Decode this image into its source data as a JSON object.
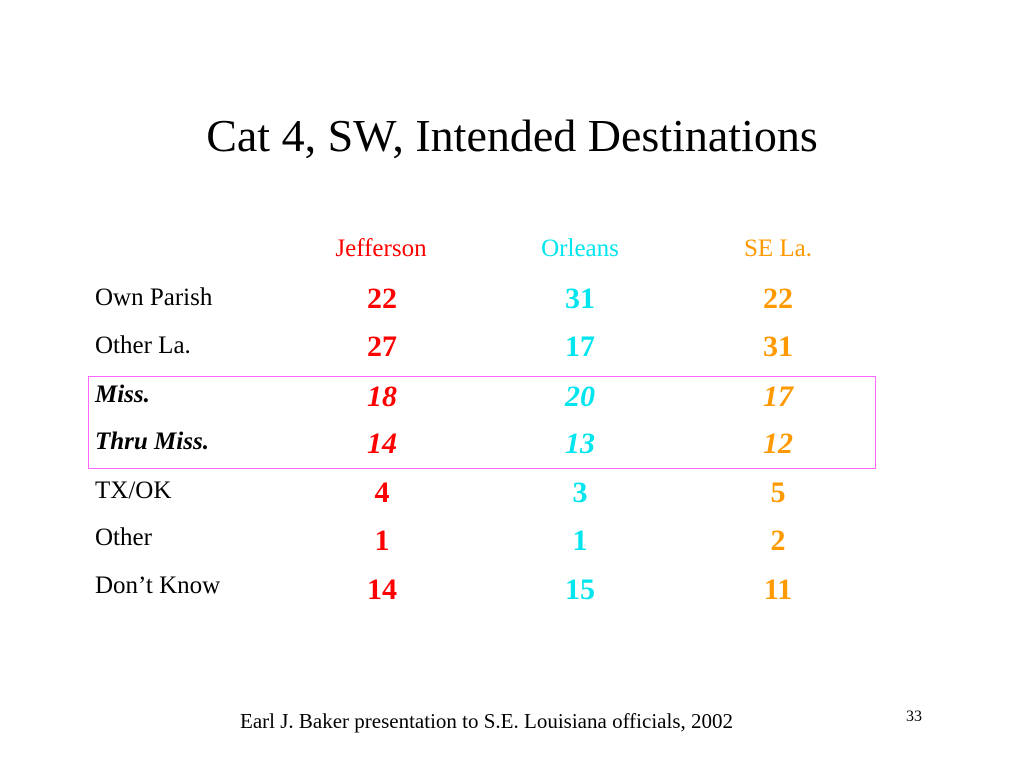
{
  "slide": {
    "title": "Cat 4, SW, Intended Destinations",
    "footer": "Earl J. Baker presentation to S.E. Louisiana officials, 2002",
    "page_number": "33"
  },
  "colors": {
    "jefferson": "#ff0000",
    "orleans": "#00e5ee",
    "se_la": "#ff9900",
    "highlight_border": "#ff66ff"
  },
  "table": {
    "columns": [
      "Jefferson",
      "Orleans",
      "SE La."
    ],
    "rows": [
      {
        "label": "Own Parish",
        "values": [
          "22",
          "31",
          "22"
        ]
      },
      {
        "label": "Other La.",
        "values": [
          "27",
          "17",
          "31"
        ]
      },
      {
        "label": "Miss.",
        "values": [
          "18",
          "20",
          "17"
        ]
      },
      {
        "label": "Thru Miss.",
        "values": [
          "14",
          "13",
          "12"
        ]
      },
      {
        "label": "TX/OK",
        "values": [
          "4",
          "3",
          "5"
        ]
      },
      {
        "label": "Other",
        "values": [
          "1",
          "1",
          "2"
        ]
      },
      {
        "label": "Don’t Know",
        "values": [
          "14",
          "15",
          "11"
        ]
      }
    ]
  }
}
